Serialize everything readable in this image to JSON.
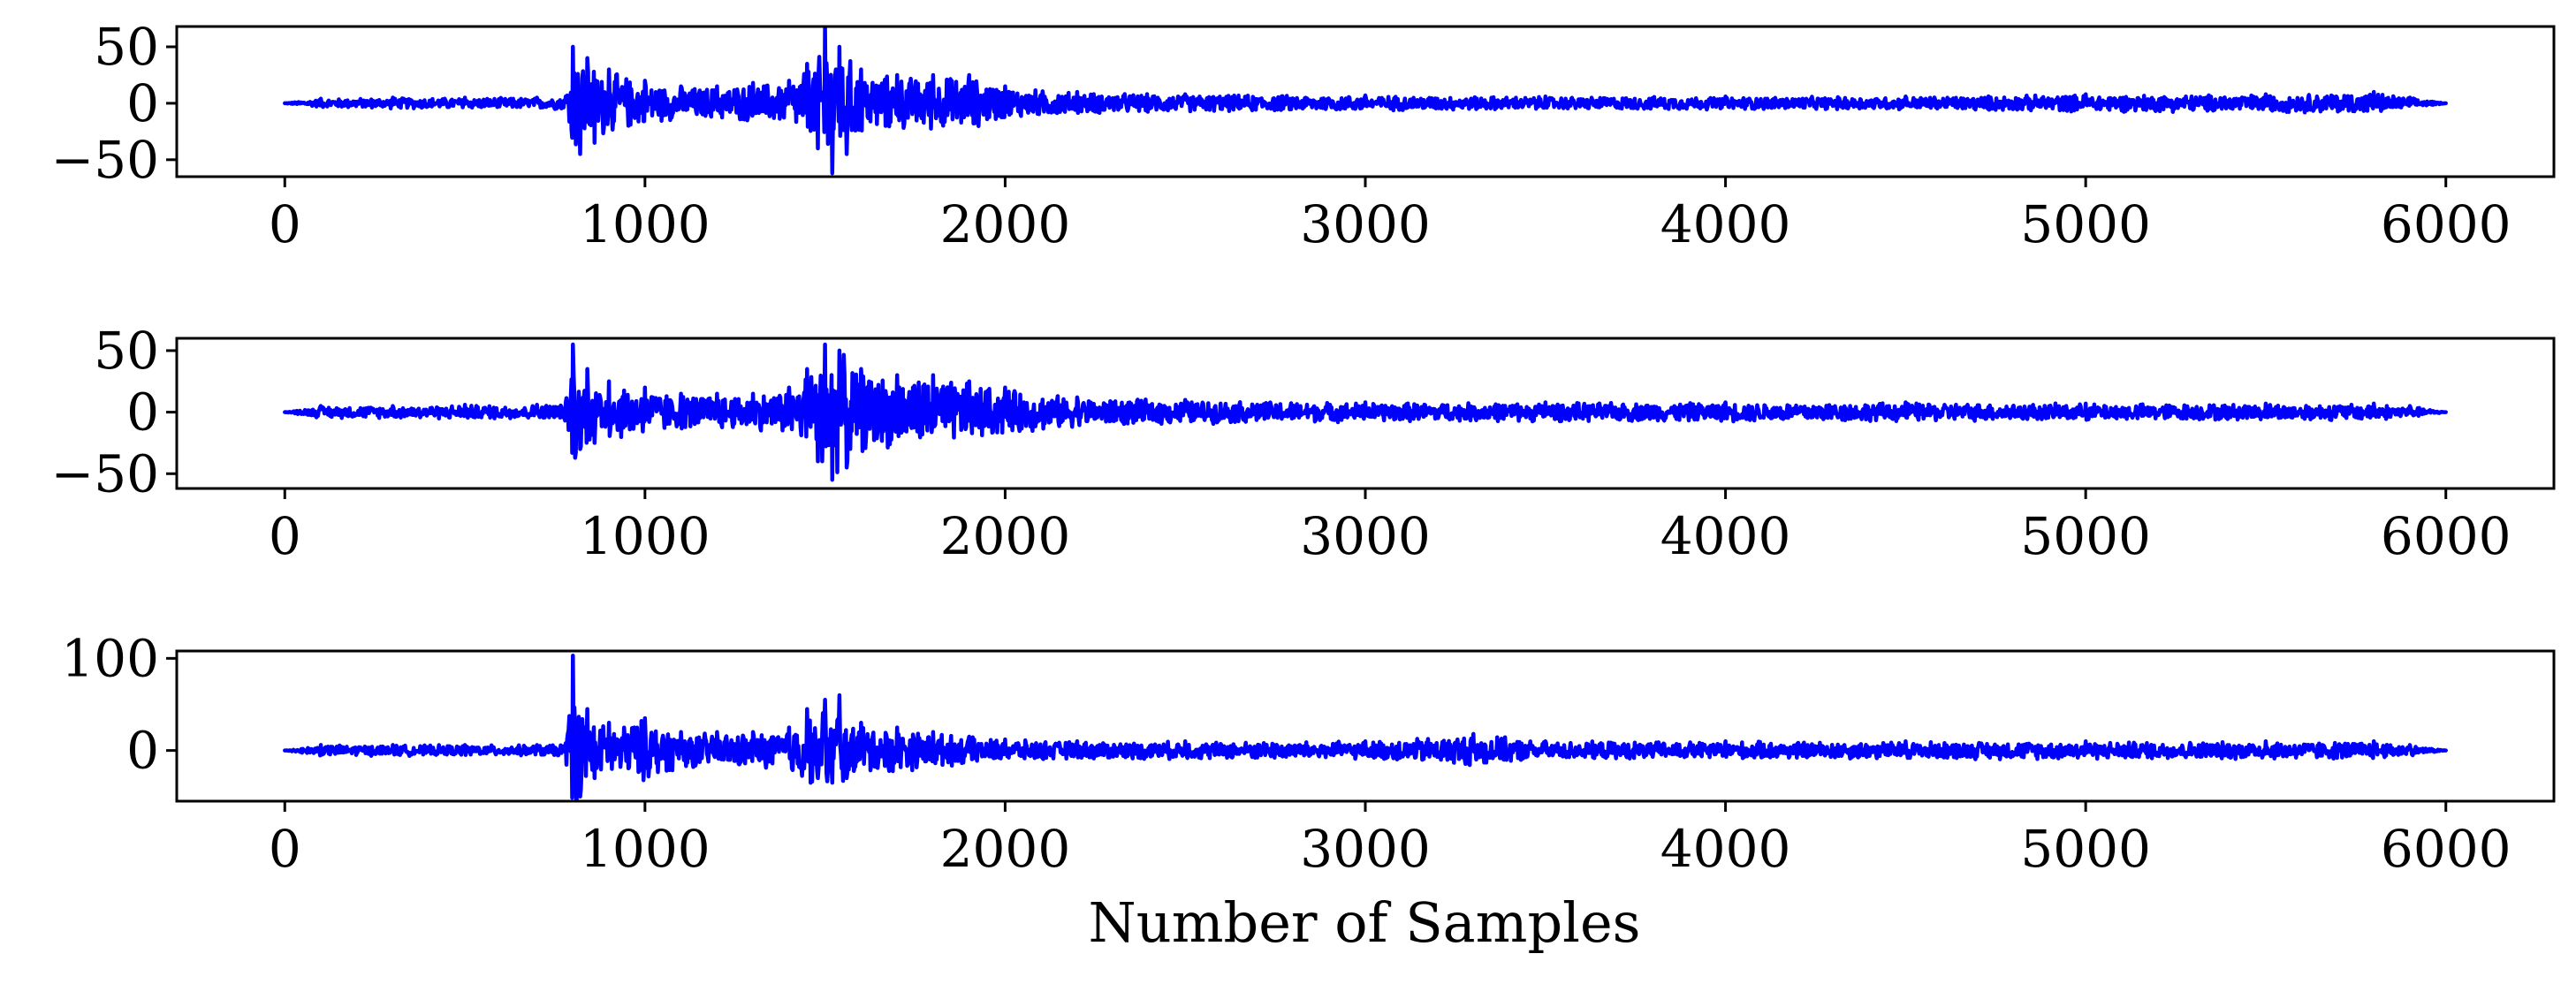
{
  "chart_data": [
    {
      "type": "line",
      "xlabel": "",
      "ylabel": "",
      "xlim": [
        -300,
        6300
      ],
      "ylim": [
        -65,
        68
      ],
      "xticks": [
        0,
        1000,
        2000,
        3000,
        4000,
        5000,
        6000
      ],
      "xtick_labels": [
        "0",
        "1000",
        "2000",
        "3000",
        "4000",
        "5000",
        "6000"
      ],
      "yticks": [
        50,
        0,
        -50
      ],
      "ytick_labels": [
        "50",
        "0",
        "−50"
      ],
      "grid": false,
      "line_color": "#0000ff",
      "series": [
        {
          "x": [
            0,
            100,
            300,
            500,
            700,
            780,
            800,
            820,
            840,
            860,
            900,
            1000,
            1100,
            1200,
            1300,
            1400,
            1450,
            1480,
            1500,
            1520,
            1540,
            1560,
            1600,
            1700,
            1800,
            1900,
            2000,
            2200,
            2500,
            3000,
            3500,
            4000,
            4500,
            5000,
            5500,
            5800,
            5900,
            6000
          ],
          "y": [
            0,
            4,
            5,
            5,
            5,
            6,
            50,
            -45,
            40,
            -35,
            30,
            20,
            15,
            15,
            18,
            20,
            35,
            -40,
            67,
            -62,
            50,
            -45,
            30,
            25,
            25,
            25,
            15,
            10,
            8,
            7,
            6,
            6,
            6,
            8,
            8,
            10,
            5,
            0
          ],
          "envelope": true
        }
      ]
    },
    {
      "type": "line",
      "xlabel": "",
      "ylabel": "",
      "xlim": [
        -300,
        6300
      ],
      "ylim": [
        -62,
        60
      ],
      "xticks": [
        0,
        1000,
        2000,
        3000,
        4000,
        5000,
        6000
      ],
      "xtick_labels": [
        "0",
        "1000",
        "2000",
        "3000",
        "4000",
        "5000",
        "6000"
      ],
      "yticks": [
        50,
        0,
        -50
      ],
      "ytick_labels": [
        "50",
        "0",
        "−50"
      ],
      "grid": false,
      "line_color": "#0000ff",
      "series": [
        {
          "x": [
            0,
            100,
            300,
            500,
            700,
            780,
            800,
            820,
            840,
            860,
            900,
            1000,
            1100,
            1200,
            1300,
            1400,
            1450,
            1480,
            1500,
            1520,
            1540,
            1560,
            1600,
            1700,
            1800,
            1900,
            2000,
            2200,
            2500,
            3000,
            3500,
            4000,
            4500,
            5000,
            5500,
            5800,
            5900,
            6000
          ],
          "y": [
            0,
            5,
            5,
            6,
            6,
            8,
            55,
            -30,
            35,
            -25,
            25,
            20,
            15,
            15,
            15,
            20,
            35,
            -40,
            55,
            -55,
            50,
            -45,
            35,
            30,
            30,
            25,
            20,
            12,
            10,
            8,
            8,
            8,
            8,
            7,
            7,
            7,
            5,
            0
          ],
          "envelope": true
        }
      ]
    },
    {
      "type": "line",
      "xlabel": "Number of Samples",
      "ylabel": "",
      "xlim": [
        -300,
        6300
      ],
      "ylim": [
        -55,
        108
      ],
      "xticks": [
        0,
        1000,
        2000,
        3000,
        4000,
        5000,
        6000
      ],
      "xtick_labels": [
        "0",
        "1000",
        "2000",
        "3000",
        "4000",
        "5000",
        "6000"
      ],
      "yticks": [
        100,
        0
      ],
      "ytick_labels": [
        "100",
        "0"
      ],
      "grid": false,
      "line_color": "#0000ff",
      "series": [
        {
          "x": [
            0,
            100,
            300,
            500,
            700,
            780,
            800,
            820,
            840,
            860,
            900,
            1000,
            1100,
            1200,
            1300,
            1400,
            1450,
            1480,
            1500,
            1520,
            1540,
            1560,
            1600,
            1700,
            1800,
            1900,
            2000,
            2200,
            2500,
            3000,
            3300,
            3500,
            4000,
            4500,
            5000,
            5500,
            5800,
            5900,
            6000
          ],
          "y": [
            0,
            6,
            6,
            6,
            6,
            8,
            103,
            -50,
            45,
            -30,
            30,
            35,
            20,
            20,
            20,
            25,
            45,
            -30,
            55,
            -35,
            60,
            -30,
            30,
            25,
            20,
            15,
            12,
            10,
            10,
            10,
            18,
            10,
            10,
            10,
            10,
            10,
            10,
            6,
            0
          ],
          "envelope": true
        }
      ]
    }
  ]
}
